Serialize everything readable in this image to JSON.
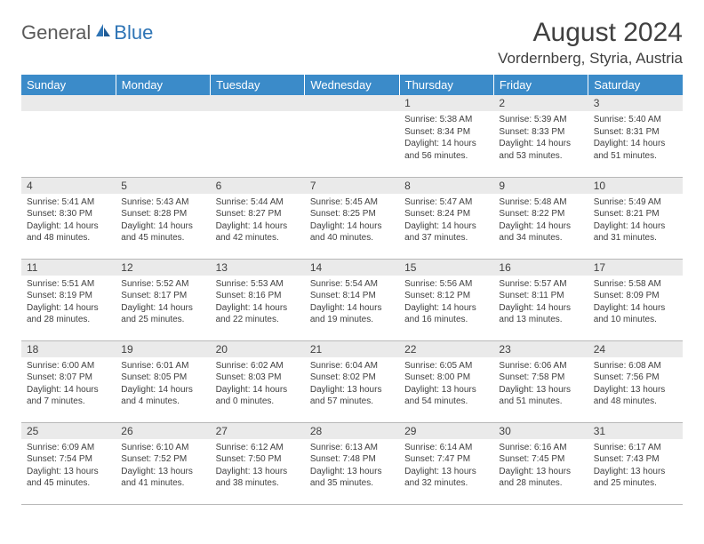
{
  "logo": {
    "general": "General",
    "blue": "Blue"
  },
  "title": "August 2024",
  "location": "Vordernberg, Styria, Austria",
  "colors": {
    "header_bg": "#3b8bc9",
    "header_text": "#ffffff",
    "daynum_bg": "#eaeaea",
    "body_text": "#404040",
    "logo_gray": "#5a5a5a",
    "logo_blue": "#2e74b5",
    "border": "#b8b8b8"
  },
  "fonts": {
    "title_size": 30,
    "location_size": 17,
    "weekday_size": 13,
    "daynum_size": 12,
    "detail_size": 10
  },
  "weekdays": [
    "Sunday",
    "Monday",
    "Tuesday",
    "Wednesday",
    "Thursday",
    "Friday",
    "Saturday"
  ],
  "weeks": [
    [
      null,
      null,
      null,
      null,
      {
        "n": "1",
        "sr": "5:38 AM",
        "ss": "8:34 PM",
        "dl": "14 hours and 56 minutes."
      },
      {
        "n": "2",
        "sr": "5:39 AM",
        "ss": "8:33 PM",
        "dl": "14 hours and 53 minutes."
      },
      {
        "n": "3",
        "sr": "5:40 AM",
        "ss": "8:31 PM",
        "dl": "14 hours and 51 minutes."
      }
    ],
    [
      {
        "n": "4",
        "sr": "5:41 AM",
        "ss": "8:30 PM",
        "dl": "14 hours and 48 minutes."
      },
      {
        "n": "5",
        "sr": "5:43 AM",
        "ss": "8:28 PM",
        "dl": "14 hours and 45 minutes."
      },
      {
        "n": "6",
        "sr": "5:44 AM",
        "ss": "8:27 PM",
        "dl": "14 hours and 42 minutes."
      },
      {
        "n": "7",
        "sr": "5:45 AM",
        "ss": "8:25 PM",
        "dl": "14 hours and 40 minutes."
      },
      {
        "n": "8",
        "sr": "5:47 AM",
        "ss": "8:24 PM",
        "dl": "14 hours and 37 minutes."
      },
      {
        "n": "9",
        "sr": "5:48 AM",
        "ss": "8:22 PM",
        "dl": "14 hours and 34 minutes."
      },
      {
        "n": "10",
        "sr": "5:49 AM",
        "ss": "8:21 PM",
        "dl": "14 hours and 31 minutes."
      }
    ],
    [
      {
        "n": "11",
        "sr": "5:51 AM",
        "ss": "8:19 PM",
        "dl": "14 hours and 28 minutes."
      },
      {
        "n": "12",
        "sr": "5:52 AM",
        "ss": "8:17 PM",
        "dl": "14 hours and 25 minutes."
      },
      {
        "n": "13",
        "sr": "5:53 AM",
        "ss": "8:16 PM",
        "dl": "14 hours and 22 minutes."
      },
      {
        "n": "14",
        "sr": "5:54 AM",
        "ss": "8:14 PM",
        "dl": "14 hours and 19 minutes."
      },
      {
        "n": "15",
        "sr": "5:56 AM",
        "ss": "8:12 PM",
        "dl": "14 hours and 16 minutes."
      },
      {
        "n": "16",
        "sr": "5:57 AM",
        "ss": "8:11 PM",
        "dl": "14 hours and 13 minutes."
      },
      {
        "n": "17",
        "sr": "5:58 AM",
        "ss": "8:09 PM",
        "dl": "14 hours and 10 minutes."
      }
    ],
    [
      {
        "n": "18",
        "sr": "6:00 AM",
        "ss": "8:07 PM",
        "dl": "14 hours and 7 minutes."
      },
      {
        "n": "19",
        "sr": "6:01 AM",
        "ss": "8:05 PM",
        "dl": "14 hours and 4 minutes."
      },
      {
        "n": "20",
        "sr": "6:02 AM",
        "ss": "8:03 PM",
        "dl": "14 hours and 0 minutes."
      },
      {
        "n": "21",
        "sr": "6:04 AM",
        "ss": "8:02 PM",
        "dl": "13 hours and 57 minutes."
      },
      {
        "n": "22",
        "sr": "6:05 AM",
        "ss": "8:00 PM",
        "dl": "13 hours and 54 minutes."
      },
      {
        "n": "23",
        "sr": "6:06 AM",
        "ss": "7:58 PM",
        "dl": "13 hours and 51 minutes."
      },
      {
        "n": "24",
        "sr": "6:08 AM",
        "ss": "7:56 PM",
        "dl": "13 hours and 48 minutes."
      }
    ],
    [
      {
        "n": "25",
        "sr": "6:09 AM",
        "ss": "7:54 PM",
        "dl": "13 hours and 45 minutes."
      },
      {
        "n": "26",
        "sr": "6:10 AM",
        "ss": "7:52 PM",
        "dl": "13 hours and 41 minutes."
      },
      {
        "n": "27",
        "sr": "6:12 AM",
        "ss": "7:50 PM",
        "dl": "13 hours and 38 minutes."
      },
      {
        "n": "28",
        "sr": "6:13 AM",
        "ss": "7:48 PM",
        "dl": "13 hours and 35 minutes."
      },
      {
        "n": "29",
        "sr": "6:14 AM",
        "ss": "7:47 PM",
        "dl": "13 hours and 32 minutes."
      },
      {
        "n": "30",
        "sr": "6:16 AM",
        "ss": "7:45 PM",
        "dl": "13 hours and 28 minutes."
      },
      {
        "n": "31",
        "sr": "6:17 AM",
        "ss": "7:43 PM",
        "dl": "13 hours and 25 minutes."
      }
    ]
  ],
  "labels": {
    "sunrise": "Sunrise:",
    "sunset": "Sunset:",
    "daylight": "Daylight:"
  }
}
